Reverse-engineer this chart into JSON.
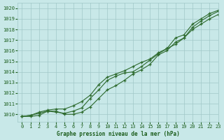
{
  "title": "Graphe pression niveau de la mer (hPa)",
  "xlim": [
    -0.5,
    23
  ],
  "ylim": [
    1009.3,
    1020.5
  ],
  "yticks": [
    1010,
    1011,
    1012,
    1013,
    1014,
    1015,
    1016,
    1017,
    1018,
    1019,
    1020
  ],
  "xticks": [
    0,
    1,
    2,
    3,
    4,
    5,
    6,
    7,
    8,
    9,
    10,
    11,
    12,
    13,
    14,
    15,
    16,
    17,
    18,
    19,
    20,
    21,
    22,
    23
  ],
  "bg_color": "#c8e8e8",
  "grid_color": "#a0c8c8",
  "line_color": "#2d6a2d",
  "text_color": "#1a5c1a",
  "series": [
    [
      1009.8,
      1009.9,
      1010.2,
      1010.4,
      1010.5,
      1010.5,
      1010.8,
      1011.2,
      1011.8,
      1012.8,
      1013.5,
      1013.8,
      1014.1,
      1014.5,
      1014.9,
      1015.2,
      1015.8,
      1016.2,
      1017.2,
      1017.5,
      1018.5,
      1019.0,
      1019.5,
      1019.8
    ],
    [
      1009.8,
      1009.9,
      1010.1,
      1010.3,
      1010.2,
      1010.1,
      1010.3,
      1010.6,
      1011.5,
      1012.3,
      1013.2,
      1013.6,
      1013.9,
      1014.0,
      1014.5,
      1015.1,
      1015.7,
      1016.2,
      1016.6,
      1017.2,
      1018.0,
      1018.5,
      1019.0,
      1019.4
    ],
    [
      1009.8,
      1009.8,
      1009.9,
      1010.3,
      1010.3,
      1010.0,
      1010.0,
      1010.2,
      1010.7,
      1011.5,
      1012.3,
      1012.7,
      1013.2,
      1013.8,
      1014.2,
      1014.7,
      1015.6,
      1016.0,
      1016.8,
      1017.2,
      1018.2,
      1018.8,
      1019.3,
      1019.7
    ]
  ]
}
